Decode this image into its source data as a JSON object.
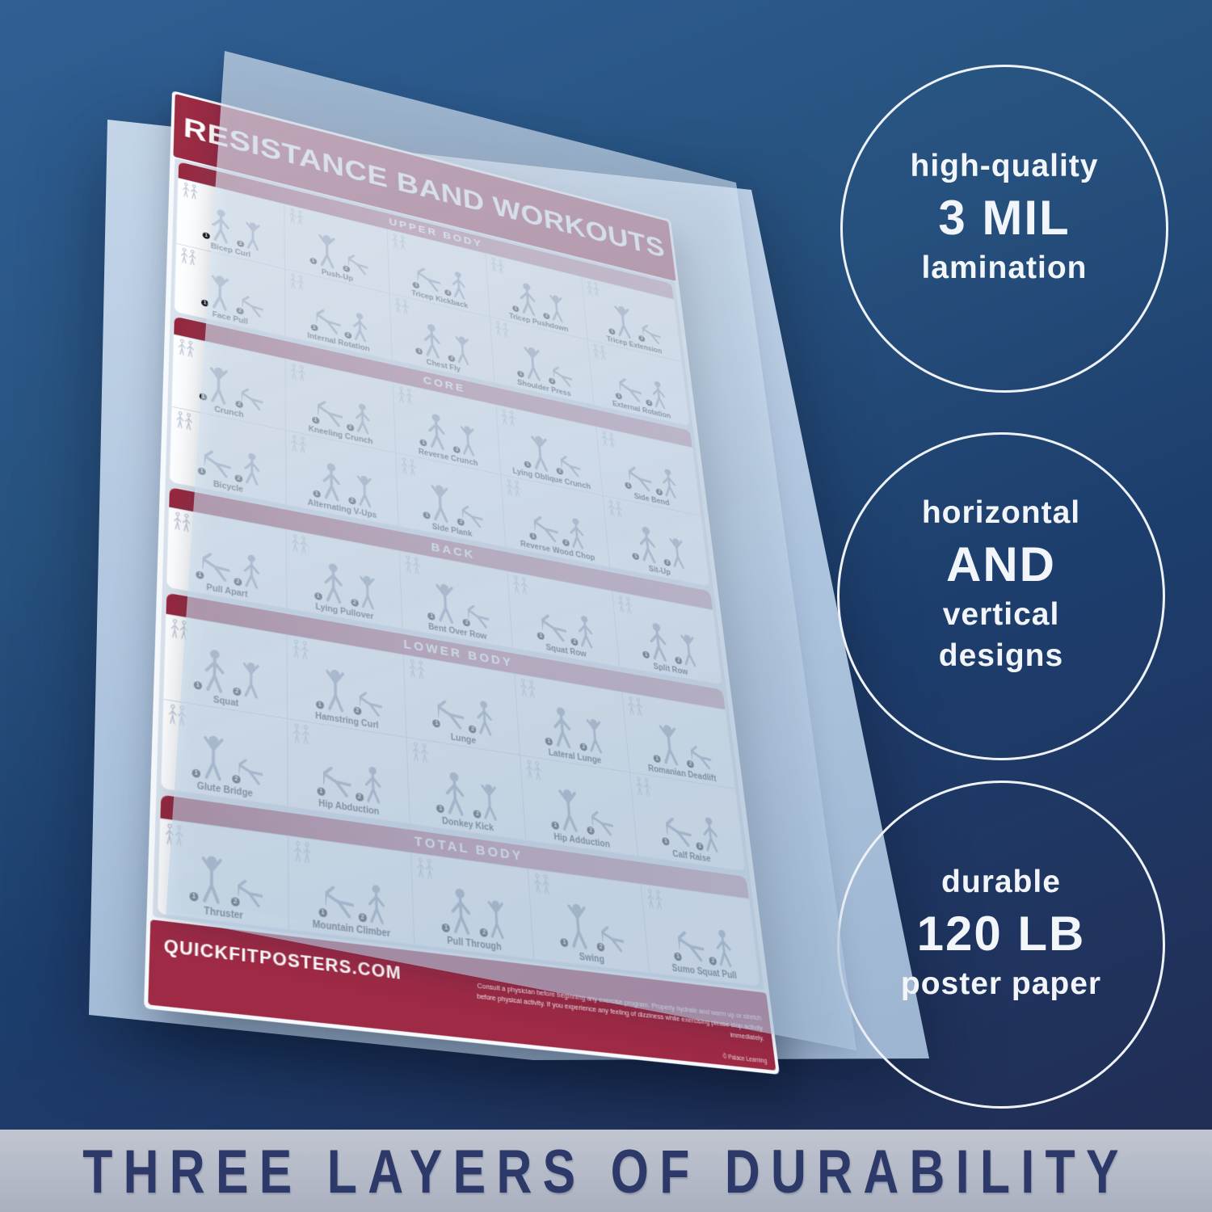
{
  "poster": {
    "title": "RESISTANCE BAND WORKOUTS",
    "website": "QUICKFITPOSTERS.COM",
    "disclaimer": "Consult a physician before beginning any exercise program. Properly hydrate and warm up or stretch before physical activity. If you experience any feeling of dizziness while exercising please stop activity immediately.",
    "credit": "© Palace Learning",
    "sections": [
      {
        "label": "UPPER BODY",
        "rows": [
          [
            "Bicep Curl",
            "Push-Up",
            "Tricep Kickback",
            "Tricep Pushdown",
            "Tricep Extension"
          ],
          [
            "Face Pull",
            "Internal Rotation",
            "Chest Fly",
            "Shoulder Press",
            "External Rotation"
          ]
        ]
      },
      {
        "label": "CORE",
        "rows": [
          [
            "Crunch",
            "Kneeling Crunch",
            "Reverse Crunch",
            "Lying Oblique Crunch",
            "Side Bend"
          ],
          [
            "Bicycle",
            "Alternating V-Ups",
            "Side Plank",
            "Reverse Wood Chop",
            "Sit-Up"
          ]
        ]
      },
      {
        "label": "BACK",
        "rows": [
          [
            "Pull Apart",
            "Lying Pullover",
            "Bent Over Row",
            "Squat Row",
            "Split Row"
          ]
        ]
      },
      {
        "label": "LOWER BODY",
        "rows": [
          [
            "Squat",
            "Hamstring Curl",
            "Lunge",
            "Lateral Lunge",
            "Romanian Deadlift"
          ],
          [
            "Glute Bridge",
            "Hip Abduction",
            "Donkey Kick",
            "Hip Adduction",
            "Calf Raise"
          ]
        ]
      },
      {
        "label": "TOTAL BODY",
        "rows": [
          [
            "Thruster",
            "Mountain Climber",
            "Pull Through",
            "Swing",
            "Sumo Squat Pull"
          ]
        ]
      }
    ]
  },
  "features": [
    {
      "lines": [
        {
          "size": "small",
          "text": "high-quality"
        },
        {
          "size": "big",
          "text": "3 MIL"
        },
        {
          "size": "small",
          "text": "lamination"
        }
      ]
    },
    {
      "lines": [
        {
          "size": "small",
          "text": "horizontal"
        },
        {
          "size": "big",
          "text": "AND"
        },
        {
          "size": "small",
          "text": "vertical"
        },
        {
          "size": "small",
          "text": "designs"
        }
      ]
    },
    {
      "lines": [
        {
          "size": "small",
          "text": "durable"
        },
        {
          "size": "big",
          "text": "120 LB"
        },
        {
          "size": "small",
          "text": "poster paper"
        }
      ]
    }
  ],
  "banner": {
    "text": "THREE LAYERS OF DURABILITY"
  },
  "icons": {
    "exercise_figure": "stick-figure",
    "muscle_diagram": "front-back-body-outline",
    "step_badge": "numbered-dot"
  },
  "colors": {
    "poster_red": "#9c2b44",
    "navy_top": "#2f5f94",
    "navy_bottom": "#222b52",
    "sheet_blue": "#abc2dc",
    "banner_bg": "#b4bac7",
    "banner_text": "#2d3a69",
    "circle_text": "#f2f5f9"
  }
}
